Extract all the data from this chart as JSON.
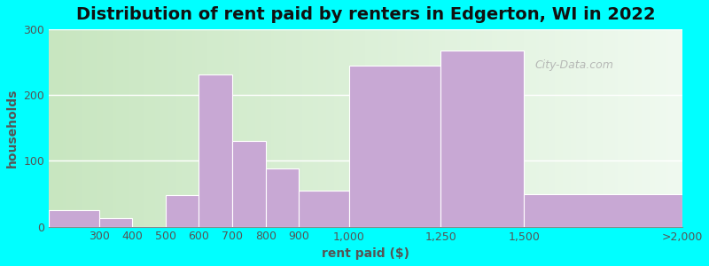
{
  "title": "Distribution of rent paid by renters in Edgerton, WI in 2022",
  "xlabel": "rent paid ($)",
  "ylabel": "households",
  "bin_edges": [
    200,
    350,
    450,
    550,
    650,
    750,
    850,
    950,
    1100,
    1375,
    1625,
    2100
  ],
  "tick_positions": [
    200,
    350,
    450,
    550,
    650,
    750,
    850,
    950,
    1100,
    1375,
    1625,
    2100
  ],
  "tick_labels": [
    "",
    "300",
    "400",
    "500",
    "600",
    "700",
    "800",
    "900",
    "1,000",
    "1,250",
    "1,500",
    ">2,000"
  ],
  "values": [
    25,
    13,
    0,
    48,
    232,
    130,
    88,
    55,
    245,
    268,
    50
  ],
  "bar_color": "#c8a8d4",
  "bar_edge_color": "#c8a8d4",
  "background_color": "#00ffff",
  "plot_bg_left": "#d4edcc",
  "plot_bg_right": "#e8f8f0",
  "ylim": [
    0,
    300
  ],
  "yticks": [
    0,
    100,
    200,
    300
  ],
  "title_fontsize": 14,
  "label_fontsize": 10,
  "tick_fontsize": 9,
  "watermark_text": "City-Data.com"
}
